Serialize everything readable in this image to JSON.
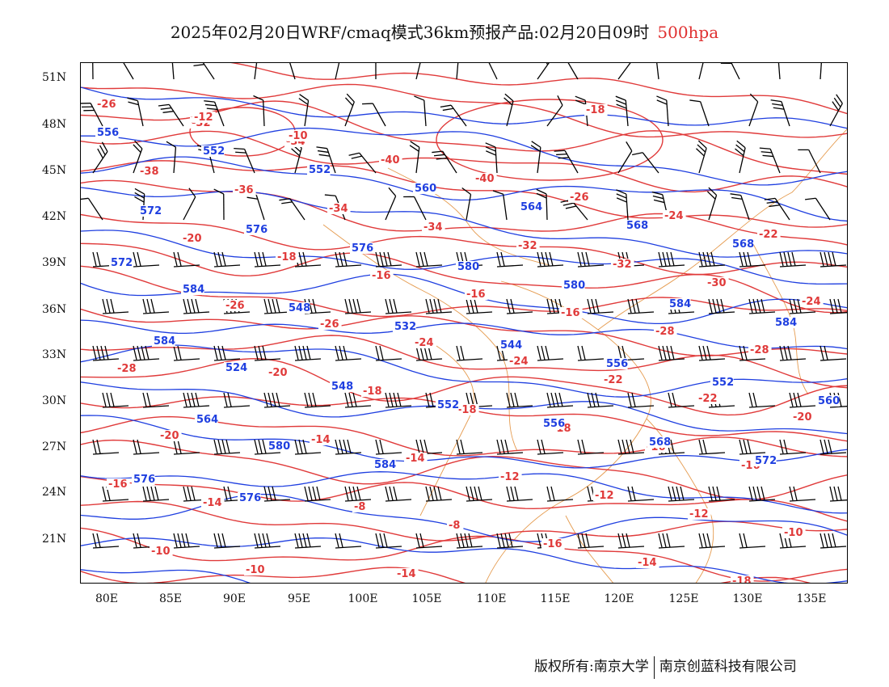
{
  "title": {
    "text": "2025年02月20日WRF/cmaq模式36km预报产品:02月20日09时",
    "level": "500hpa"
  },
  "colors": {
    "temperature": "#e03a3a",
    "height": "#1f3fe0",
    "coast": "#e08a30",
    "wind": "#000000"
  },
  "axes": {
    "lat_labels": [
      "51N",
      "48N",
      "45N",
      "42N",
      "39N",
      "36N",
      "33N",
      "30N",
      "27N",
      "24N",
      "21N"
    ],
    "lon_labels": [
      "80E",
      "85E",
      "90E",
      "95E",
      "100E",
      "105E",
      "110E",
      "115E",
      "120E",
      "125E",
      "130E",
      "135E"
    ]
  },
  "contour_labels": {
    "height": [
      "556",
      "552",
      "552",
      "560",
      "564",
      "568",
      "568",
      "572",
      "572",
      "576",
      "576",
      "580",
      "580",
      "584",
      "584",
      "584",
      "584",
      "548",
      "532",
      "544",
      "556",
      "552",
      "560",
      "564",
      "524",
      "548",
      "552",
      "556",
      "568",
      "572",
      "576",
      "576",
      "580",
      "584"
    ],
    "temperature": [
      "-26",
      "-32",
      "-34",
      "-40",
      "-40",
      "-26",
      "-24",
      "-22",
      "-38",
      "-36",
      "-34",
      "-34",
      "-32",
      "-32",
      "-30",
      "-24",
      "-20",
      "-18",
      "-16",
      "-16",
      "-16",
      "-28",
      "-28",
      "-28",
      "-26",
      "-26",
      "-24",
      "-24",
      "-22",
      "-22",
      "-20",
      "-20",
      "-20",
      "-18",
      "-18",
      "-18",
      "-16",
      "-16",
      "-16",
      "-14",
      "-14",
      "-14",
      "-12",
      "-12",
      "-12",
      "-10",
      "-10",
      "-10",
      "-8",
      "-8",
      "-16",
      "-14",
      "-18",
      "-16",
      "-12",
      "-10",
      "-14",
      "-16",
      "-18"
    ]
  },
  "footer": {
    "left": "版权所有:南京大学",
    "right": "南京创蓝科技有限公司"
  }
}
